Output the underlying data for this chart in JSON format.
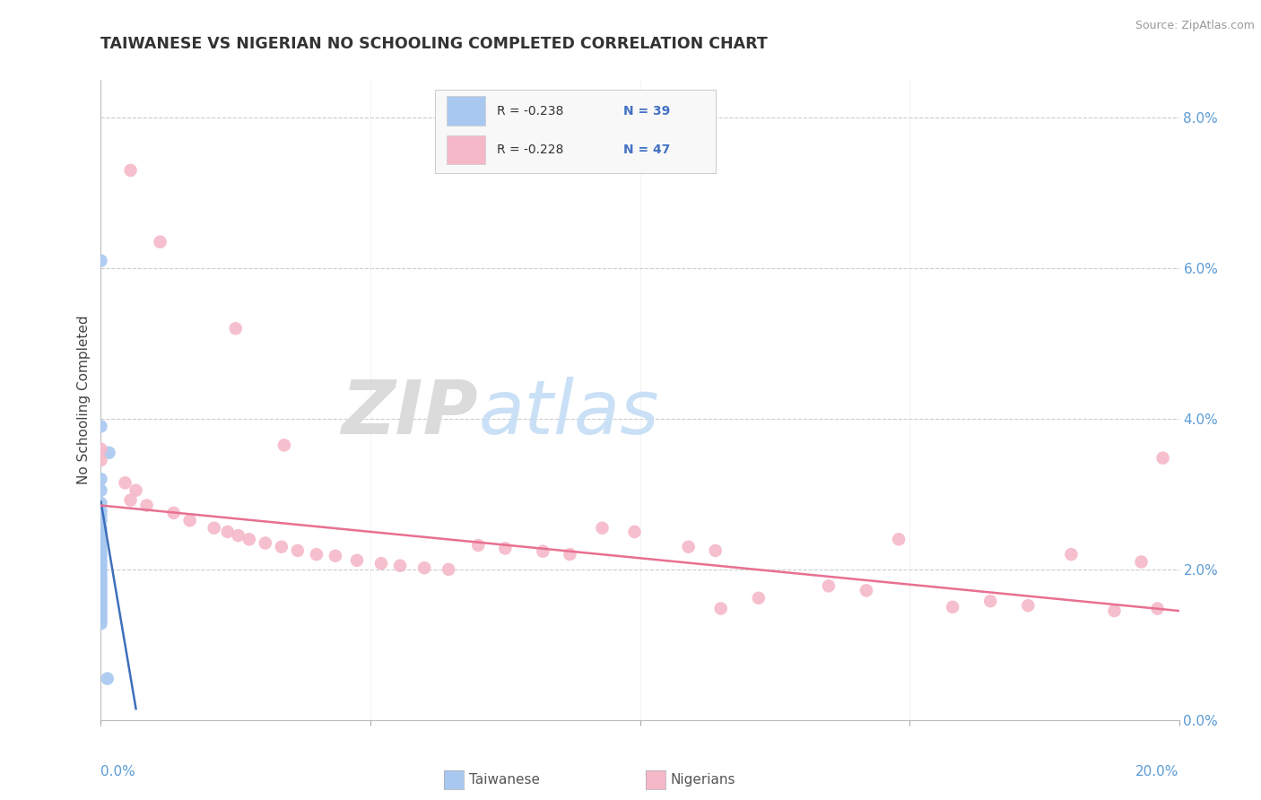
{
  "title": "TAIWANESE VS NIGERIAN NO SCHOOLING COMPLETED CORRELATION CHART",
  "source": "Source: ZipAtlas.com",
  "ylabel": "No Schooling Completed",
  "xlim": [
    0.0,
    20.0
  ],
  "ylim": [
    0.0,
    8.5
  ],
  "ytick_vals": [
    0.0,
    2.0,
    4.0,
    6.0,
    8.0
  ],
  "xtick_vals": [
    0.0,
    5.0,
    10.0,
    15.0,
    20.0
  ],
  "taiwanese_color": "#a8c8f0",
  "nigerian_color": "#f5b8c8",
  "taiwanese_line_color": "#3d6fba",
  "nigerian_line_color": "#e87090",
  "taiwanese_scatter": [
    [
      0.0,
      6.1
    ],
    [
      0.0,
      3.9
    ],
    [
      0.15,
      3.55
    ],
    [
      0.0,
      3.2
    ],
    [
      0.0,
      3.05
    ],
    [
      0.0,
      2.88
    ],
    [
      0.0,
      2.78
    ],
    [
      0.0,
      2.72
    ],
    [
      0.0,
      2.65
    ],
    [
      0.0,
      2.55
    ],
    [
      0.0,
      2.5
    ],
    [
      0.0,
      2.45
    ],
    [
      0.0,
      2.4
    ],
    [
      0.0,
      2.35
    ],
    [
      0.0,
      2.28
    ],
    [
      0.0,
      2.22
    ],
    [
      0.0,
      2.18
    ],
    [
      0.0,
      2.12
    ],
    [
      0.0,
      2.07
    ],
    [
      0.0,
      2.02
    ],
    [
      0.0,
      1.97
    ],
    [
      0.0,
      1.92
    ],
    [
      0.0,
      1.88
    ],
    [
      0.0,
      1.84
    ],
    [
      0.0,
      1.8
    ],
    [
      0.0,
      1.76
    ],
    [
      0.0,
      1.72
    ],
    [
      0.0,
      1.68
    ],
    [
      0.0,
      1.64
    ],
    [
      0.0,
      1.6
    ],
    [
      0.0,
      1.56
    ],
    [
      0.0,
      1.52
    ],
    [
      0.0,
      1.48
    ],
    [
      0.0,
      1.44
    ],
    [
      0.0,
      1.4
    ],
    [
      0.0,
      1.36
    ],
    [
      0.0,
      1.32
    ],
    [
      0.0,
      1.28
    ],
    [
      0.12,
      0.55
    ]
  ],
  "nigerian_scatter": [
    [
      0.55,
      7.3
    ],
    [
      1.1,
      6.35
    ],
    [
      2.5,
      5.2
    ],
    [
      3.4,
      3.65
    ],
    [
      0.0,
      3.6
    ],
    [
      0.0,
      3.45
    ],
    [
      0.45,
      3.15
    ],
    [
      0.65,
      3.05
    ],
    [
      0.55,
      2.92
    ],
    [
      0.85,
      2.85
    ],
    [
      1.35,
      2.75
    ],
    [
      1.65,
      2.65
    ],
    [
      2.1,
      2.55
    ],
    [
      2.35,
      2.5
    ],
    [
      2.55,
      2.45
    ],
    [
      2.75,
      2.4
    ],
    [
      3.05,
      2.35
    ],
    [
      3.35,
      2.3
    ],
    [
      3.65,
      2.25
    ],
    [
      4.0,
      2.2
    ],
    [
      4.35,
      2.18
    ],
    [
      4.75,
      2.12
    ],
    [
      5.2,
      2.08
    ],
    [
      5.55,
      2.05
    ],
    [
      6.0,
      2.02
    ],
    [
      6.45,
      2.0
    ],
    [
      7.0,
      2.32
    ],
    [
      7.5,
      2.28
    ],
    [
      8.2,
      2.24
    ],
    [
      8.7,
      2.2
    ],
    [
      9.3,
      2.55
    ],
    [
      9.9,
      2.5
    ],
    [
      10.9,
      2.3
    ],
    [
      11.4,
      2.25
    ],
    [
      12.2,
      1.62
    ],
    [
      13.5,
      1.78
    ],
    [
      14.2,
      1.72
    ],
    [
      14.8,
      2.4
    ],
    [
      16.5,
      1.58
    ],
    [
      17.2,
      1.52
    ],
    [
      18.0,
      2.2
    ],
    [
      18.8,
      1.45
    ],
    [
      19.3,
      2.1
    ],
    [
      19.7,
      3.48
    ],
    [
      11.5,
      1.48
    ],
    [
      15.8,
      1.5
    ],
    [
      19.6,
      1.48
    ]
  ],
  "taiwanese_trendline_x": [
    0.0,
    0.65
  ],
  "taiwanese_trendline_y": [
    2.9,
    0.15
  ],
  "nigerian_trendline_x": [
    0.0,
    20.0
  ],
  "nigerian_trendline_y": [
    2.85,
    1.45
  ]
}
